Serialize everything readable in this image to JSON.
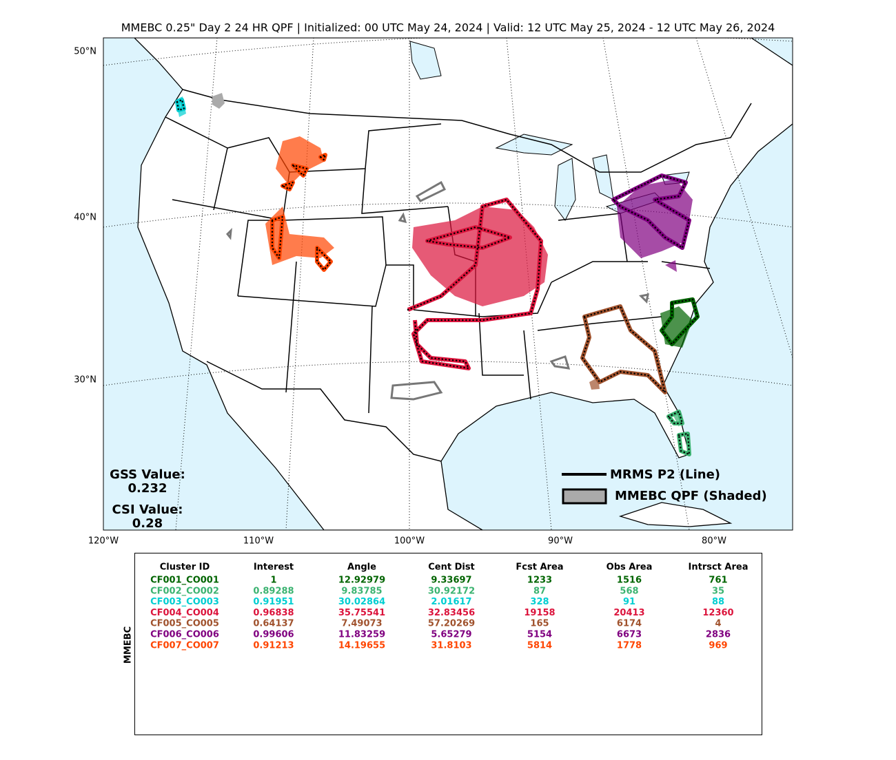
{
  "title": "MMEBC 0.25\" Day 2 24 HR QPF | Initialized: 00 UTC May 24, 2024 | Valid: 12 UTC May 25, 2024 - 12 UTC May 26, 2024",
  "map": {
    "lat_labels": [
      "50°N",
      "40°N",
      "30°N"
    ],
    "lon_labels": [
      "120°W",
      "110°W",
      "100°W",
      "90°W",
      "80°W"
    ],
    "legend": {
      "line": "MRMS P2 (Line)",
      "shaded": "MMEBC QPF (Shaded)"
    },
    "scores": {
      "gss_label": "GSS Value:",
      "gss": "0.232",
      "csi_label": "CSI Value:",
      "csi": "0.28"
    }
  },
  "table": {
    "side_label": "MMEBC",
    "columns": [
      "Cluster ID",
      "Interest",
      "Angle",
      "Cent Dist",
      "Fcst Area",
      "Obs Area",
      "Intrsct Area"
    ],
    "rows": [
      [
        "CF001_CO001",
        "1",
        "12.92979",
        "9.33697",
        "1233",
        "1516",
        "761"
      ],
      [
        "CF002_CO002",
        "0.89288",
        "9.83785",
        "30.92172",
        "87",
        "568",
        "35"
      ],
      [
        "CF003_CO003",
        "0.91951",
        "30.02864",
        "2.01617",
        "328",
        "91",
        "88"
      ],
      [
        "CF004_CO004",
        "0.96838",
        "35.75541",
        "32.83456",
        "19158",
        "20413",
        "12360"
      ],
      [
        "CF005_CO005",
        "0.64137",
        "7.49073",
        "57.20269",
        "165",
        "6174",
        "4"
      ],
      [
        "CF006_CO006",
        "0.99606",
        "11.83259",
        "5.65279",
        "5154",
        "6673",
        "2836"
      ],
      [
        "CF007_CO007",
        "0.91213",
        "14.19655",
        "31.8103",
        "5814",
        "1778",
        "969"
      ]
    ],
    "row_colors": [
      "#006400",
      "#3cb371",
      "#00ced1",
      "#dc143c",
      "#a0522d",
      "#800080",
      "#ff4500"
    ]
  }
}
